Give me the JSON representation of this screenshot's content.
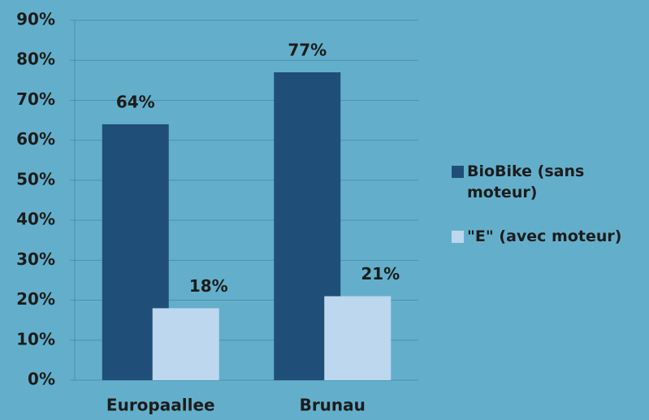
{
  "chart_data": {
    "type": "bar",
    "categories": [
      "Europaallee",
      "Brunau"
    ],
    "series": [
      {
        "name": "BioBike (sans moteur)",
        "color": "#1f4e79",
        "values": [
          64,
          77
        ],
        "value_labels": [
          "64%",
          "77%"
        ]
      },
      {
        "name": "\"E\" (avec moteur)",
        "color": "#bdd7ee",
        "values": [
          18,
          21
        ],
        "value_labels": [
          "18%",
          "21%"
        ]
      }
    ],
    "ylim": [
      0,
      90
    ],
    "yticks": [
      {
        "value": 0,
        "label": "0%"
      },
      {
        "value": 10,
        "label": "10%"
      },
      {
        "value": 20,
        "label": "20%"
      },
      {
        "value": 30,
        "label": "30%"
      },
      {
        "value": 40,
        "label": "40%"
      },
      {
        "value": 50,
        "label": "50%"
      },
      {
        "value": 60,
        "label": "60%"
      },
      {
        "value": 70,
        "label": "70%"
      },
      {
        "value": 80,
        "label": "80%"
      },
      {
        "value": 90,
        "label": "90%"
      }
    ],
    "grid": true,
    "legend": "right"
  }
}
